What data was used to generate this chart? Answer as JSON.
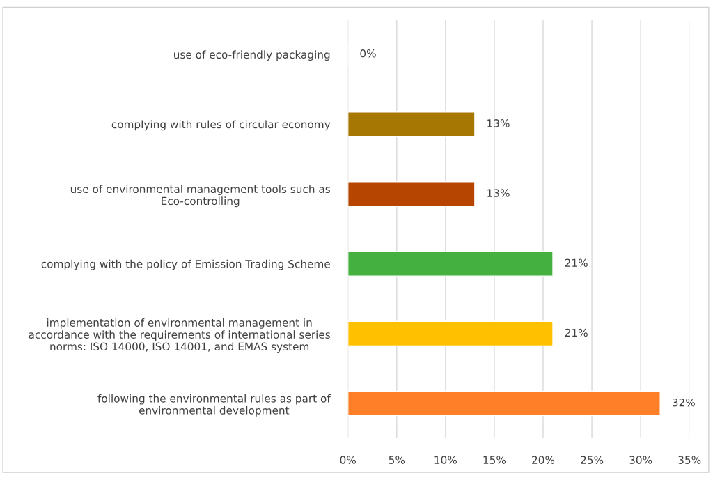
{
  "chart_data": {
    "type": "bar",
    "orientation": "horizontal",
    "categories": [
      "use of eco-friendly packaging",
      "complying with rules of circular economy",
      "use of environmental management tools such as\nEco-controlling",
      "complying with the policy of Emission Trading Scheme",
      "implementation of environmental management in\naccordance with the requirements of international series\nnorms: ISO 14000, ISO 14001, and EMAS system",
      "following the environmental rules as part of\nenvironmental development"
    ],
    "values": [
      0,
      13,
      13,
      21,
      21,
      32
    ],
    "colors": [
      null,
      "#a67703",
      "#b54500",
      "#43b03f",
      "#ffc000",
      "#fe7f27"
    ],
    "xlim": [
      0,
      35
    ],
    "xticks": [
      {
        "value": 0,
        "label": "0%"
      },
      {
        "value": 5,
        "label": "5%"
      },
      {
        "value": 10,
        "label": "10%"
      },
      {
        "value": 15,
        "label": "15%"
      },
      {
        "value": 20,
        "label": "20%"
      },
      {
        "value": 25,
        "label": "25%"
      },
      {
        "value": 30,
        "label": "30%"
      },
      {
        "value": 35,
        "label": "35%"
      }
    ],
    "value_labels": [
      "0%",
      "13%",
      "13%",
      "21%",
      "21%",
      "32%"
    ],
    "grid": "x",
    "legend": false
  }
}
